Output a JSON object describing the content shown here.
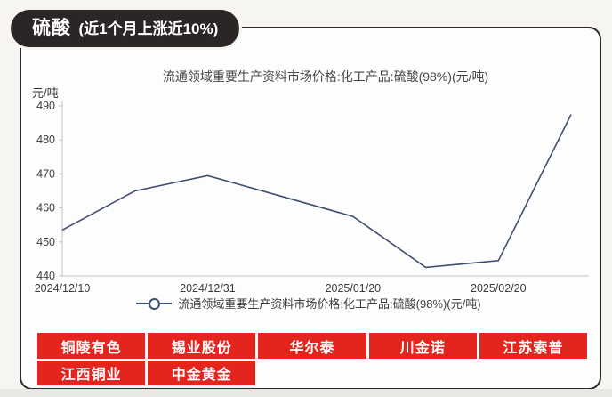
{
  "banner": {
    "product": "硫酸",
    "note": "(近1个月上涨近10%)",
    "bg_color": "#2b2526",
    "text_color": "#ffffff"
  },
  "chart_data": {
    "type": "line",
    "title": "流通领域重要生产资料市场价格:化工产品:硫酸(98%)(元/吨)",
    "ylabel": "元/吨",
    "values": [
      453.5,
      465,
      469.5,
      463.5,
      457.5,
      442.5,
      444.5,
      487.5
    ],
    "xticks": [
      {
        "index": 0,
        "label": "2024/12/10"
      },
      {
        "index": 2,
        "label": "2024/12/31"
      },
      {
        "index": 4,
        "label": "2025/01/20"
      },
      {
        "index": 6,
        "label": "2025/02/20"
      }
    ],
    "ylim": [
      440,
      490
    ],
    "ytick_step": 10,
    "grid": false,
    "legend_position": "bottom",
    "legend_label": "流通领域重要生产资料市场价格:化工产品:硫酸(98%)(元/吨)",
    "line_color": "#3f4f6e"
  },
  "stocks": {
    "bg_color": "#e3251d",
    "rows": [
      [
        "铜陵有色",
        "锡业股份",
        "华尔泰",
        "川金诺",
        "江苏索普"
      ],
      [
        "江西铜业",
        "中金黄金"
      ]
    ]
  }
}
